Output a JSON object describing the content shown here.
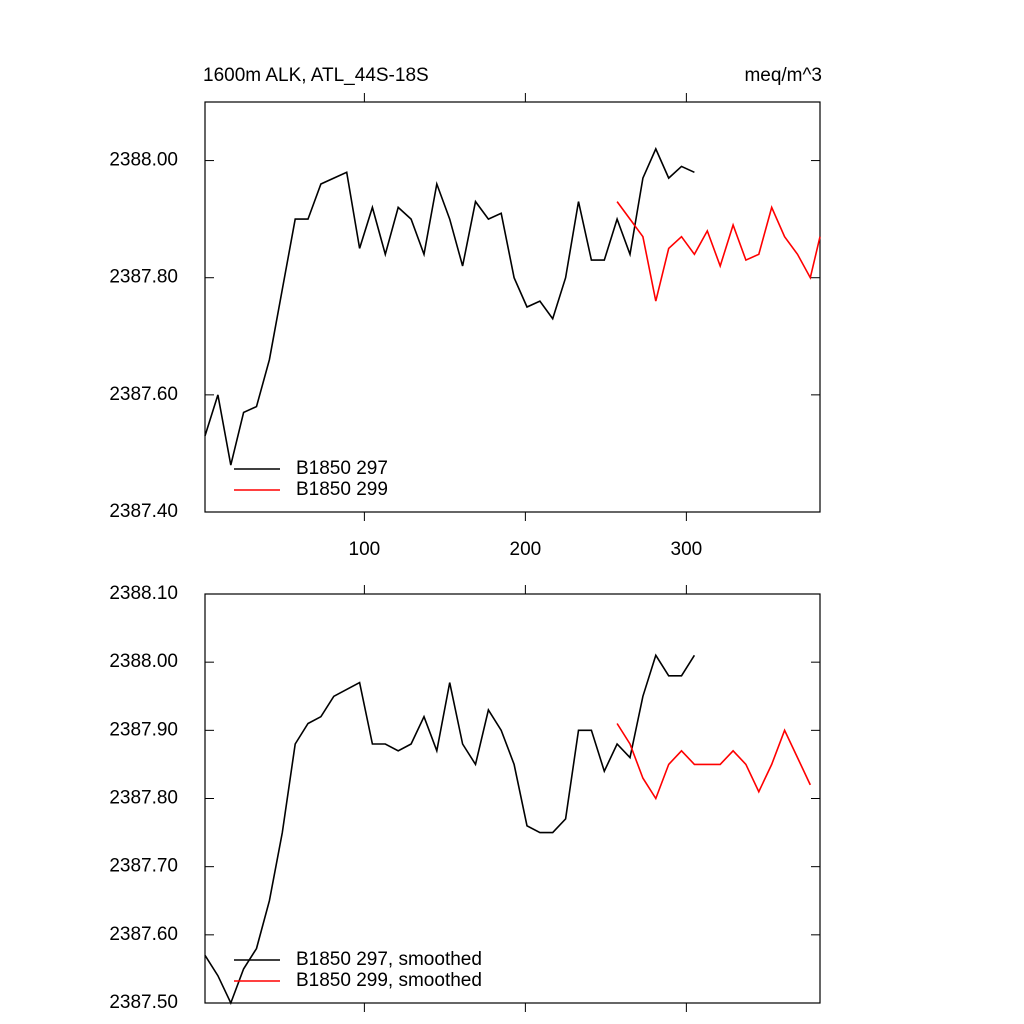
{
  "chart_data": [
    {
      "type": "line",
      "title": "1600m ALK, ATL_44S-18S",
      "subtitle": "meq/m^3",
      "x": [
        1,
        9,
        17,
        25,
        33,
        41,
        49,
        57,
        65,
        73,
        81,
        89,
        97,
        105,
        113,
        121,
        129,
        137,
        145,
        153,
        161,
        169,
        177,
        185,
        193,
        201,
        209,
        217,
        225,
        233,
        241,
        249,
        257,
        265,
        273,
        281,
        289,
        297,
        305,
        313,
        321,
        329,
        337,
        345,
        353,
        361,
        369,
        377,
        383
      ],
      "xlim": [
        1,
        383
      ],
      "xticks": [
        100,
        200,
        300
      ],
      "ylim": [
        2387.4,
        2388.1
      ],
      "yticks": [
        {
          "value": 2387.4,
          "label": "2387.40"
        },
        {
          "value": 2387.6,
          "label": "2387.60"
        },
        {
          "value": 2387.8,
          "label": "2387.80"
        },
        {
          "value": 2388.0,
          "label": "2388.00"
        }
      ],
      "legend": "lower left",
      "series": [
        {
          "name": "B1850 297",
          "color": "#000000",
          "values": [
            2387.53,
            2387.6,
            2387.48,
            2387.57,
            2387.58,
            2387.66,
            2387.78,
            2387.9,
            2387.9,
            2387.96,
            2387.97,
            2387.98,
            2387.85,
            2387.92,
            2387.84,
            2387.92,
            2387.9,
            2387.84,
            2387.96,
            2387.9,
            2387.82,
            2387.93,
            2387.9,
            2387.91,
            2387.8,
            2387.75,
            2387.76,
            2387.73,
            2387.8,
            2387.93,
            2387.83,
            2387.83,
            2387.9,
            2387.84,
            2387.97,
            2388.02,
            2387.97,
            2387.99,
            2387.98,
            null,
            null,
            null,
            null,
            null,
            null,
            null,
            null,
            null,
            null
          ]
        },
        {
          "name": "B1850 299",
          "color": "#ff0000",
          "values": [
            null,
            null,
            null,
            null,
            null,
            null,
            null,
            null,
            null,
            null,
            null,
            null,
            null,
            null,
            null,
            null,
            null,
            null,
            null,
            null,
            null,
            null,
            null,
            null,
            null,
            null,
            null,
            null,
            null,
            null,
            null,
            null,
            2387.93,
            2387.9,
            2387.87,
            2387.76,
            2387.85,
            2387.87,
            2387.84,
            2387.88,
            2387.82,
            2387.89,
            2387.83,
            2387.84,
            2387.92,
            2387.87,
            2387.84,
            2387.8,
            2387.87
          ]
        }
      ]
    },
    {
      "type": "line",
      "x": [
        1,
        9,
        17,
        25,
        33,
        41,
        49,
        57,
        65,
        73,
        81,
        89,
        97,
        105,
        113,
        121,
        129,
        137,
        145,
        153,
        161,
        169,
        177,
        185,
        193,
        201,
        209,
        217,
        225,
        233,
        241,
        249,
        257,
        265,
        273,
        281,
        289,
        297,
        305,
        313,
        321,
        329,
        337,
        345,
        353,
        361,
        369,
        377,
        383
      ],
      "xlim": [
        1,
        383
      ],
      "xticks": [
        100,
        200,
        300
      ],
      "ylim": [
        2387.5,
        2388.1
      ],
      "yticks": [
        {
          "value": 2387.5,
          "label": "2387.50"
        },
        {
          "value": 2387.6,
          "label": "2387.60"
        },
        {
          "value": 2387.7,
          "label": "2387.70"
        },
        {
          "value": 2387.8,
          "label": "2387.80"
        },
        {
          "value": 2387.9,
          "label": "2387.90"
        },
        {
          "value": 2388.0,
          "label": "2388.00"
        },
        {
          "value": 2388.1,
          "label": "2388.10"
        }
      ],
      "legend": "lower left",
      "series": [
        {
          "name": "B1850 297, smoothed",
          "color": "#000000",
          "values": [
            2387.57,
            2387.54,
            2387.5,
            2387.55,
            2387.58,
            2387.65,
            2387.75,
            2387.88,
            2387.91,
            2387.92,
            2387.95,
            2387.96,
            2387.97,
            2387.88,
            2387.88,
            2387.87,
            2387.88,
            2387.92,
            2387.87,
            2387.97,
            2387.88,
            2387.85,
            2387.93,
            2387.9,
            2387.85,
            2387.76,
            2387.75,
            2387.75,
            2387.77,
            2387.9,
            2387.9,
            2387.84,
            2387.88,
            2387.86,
            2387.95,
            2388.01,
            2387.98,
            2387.98,
            2388.01,
            null,
            null,
            null,
            null,
            null,
            null,
            null,
            null,
            null,
            null
          ]
        },
        {
          "name": "B1850 299, smoothed",
          "color": "#ff0000",
          "values": [
            null,
            null,
            null,
            null,
            null,
            null,
            null,
            null,
            null,
            null,
            null,
            null,
            null,
            null,
            null,
            null,
            null,
            null,
            null,
            null,
            null,
            null,
            null,
            null,
            null,
            null,
            null,
            null,
            null,
            null,
            null,
            null,
            2387.91,
            2387.88,
            2387.83,
            2387.8,
            2387.85,
            2387.87,
            2387.85,
            2387.85,
            2387.85,
            2387.87,
            2387.85,
            2387.81,
            2387.85,
            2387.9,
            2387.86,
            2387.82,
            null
          ]
        }
      ]
    }
  ]
}
